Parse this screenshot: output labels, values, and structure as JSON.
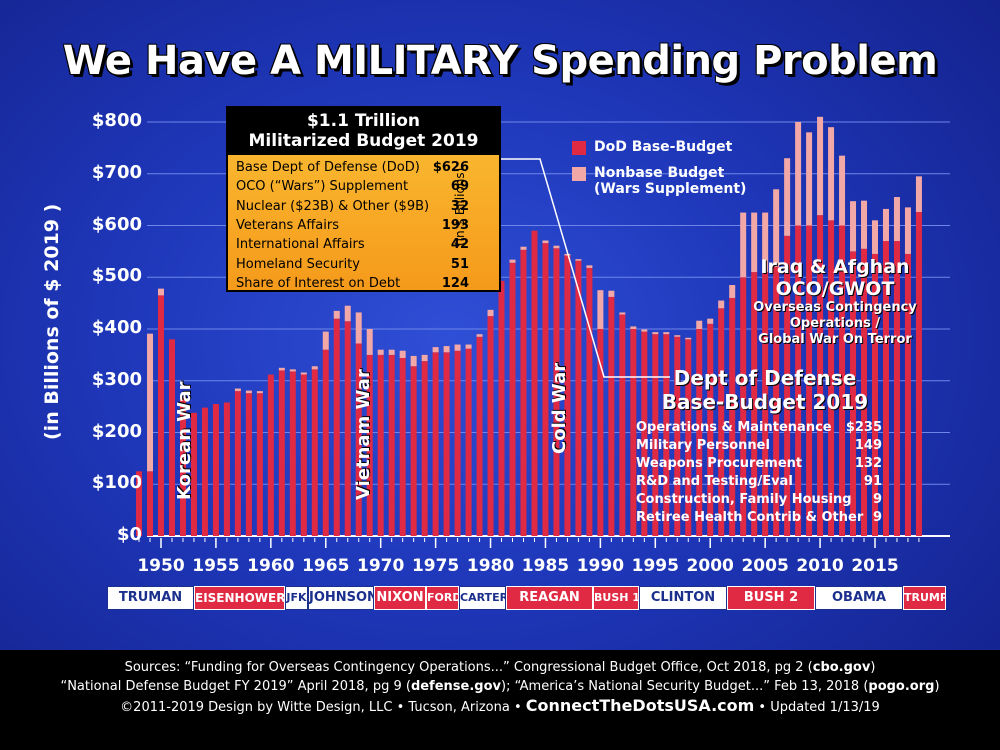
{
  "title": "We Have A MILITARY Spending Problem",
  "colors": {
    "base": "#e02a44",
    "nonbase": "#f2a8a6",
    "background": "#1e36b8",
    "box": "#f8ae2a"
  },
  "chart_data": {
    "type": "bar",
    "stacked": true,
    "ylabel": "(in Billions of $ 2019 )",
    "ylim": [
      0,
      800
    ],
    "yticks": [
      "$0",
      "$100",
      "$200",
      "$300",
      "$400",
      "$500",
      "$600",
      "$700",
      "$800"
    ],
    "xticks": [
      "1950",
      "1955",
      "1960",
      "1965",
      "1970",
      "1975",
      "1980",
      "1985",
      "1990",
      "1995",
      "2000",
      "2005",
      "2010",
      "2015"
    ],
    "grid": true,
    "legend_position": "top-right",
    "x": [
      1948,
      1949,
      1950,
      1951,
      1952,
      1953,
      1954,
      1955,
      1956,
      1957,
      1958,
      1959,
      1960,
      1961,
      1962,
      1963,
      1964,
      1965,
      1966,
      1967,
      1968,
      1969,
      1970,
      1971,
      1972,
      1973,
      1974,
      1975,
      1976,
      1977,
      1978,
      1979,
      1980,
      1981,
      1982,
      1983,
      1984,
      1985,
      1986,
      1987,
      1988,
      1989,
      1990,
      1991,
      1992,
      1993,
      1994,
      1995,
      1996,
      1997,
      1998,
      1999,
      2000,
      2001,
      2002,
      2003,
      2004,
      2005,
      2006,
      2007,
      2008,
      2009,
      2010,
      2011,
      2012,
      2013,
      2014,
      2015,
      2016,
      2017,
      2018,
      2019
    ],
    "series": [
      {
        "name": "DoD Base-Budget",
        "values": [
          125,
          125,
          465,
          380,
          268,
          238,
          248,
          255,
          258,
          280,
          276,
          276,
          312,
          320,
          318,
          312,
          322,
          360,
          420,
          415,
          372,
          350,
          350,
          350,
          344,
          328,
          338,
          355,
          355,
          358,
          362,
          385,
          425,
          493,
          528,
          553,
          590,
          566,
          556,
          542,
          532,
          518,
          400,
          462,
          428,
          400,
          395,
          390,
          390,
          385,
          380,
          400,
          410,
          440,
          460,
          500,
          510,
          510,
          520,
          580,
          600,
          600,
          620,
          610,
          600,
          550,
          555,
          545,
          570,
          570,
          545,
          626
        ]
      },
      {
        "name": "Nonbase Budget (Wars Supplement)",
        "values": [
          0,
          266,
          13,
          0,
          0,
          0,
          0,
          0,
          0,
          5,
          5,
          4,
          0,
          5,
          4,
          4,
          6,
          35,
          15,
          30,
          60,
          50,
          10,
          10,
          14,
          20,
          12,
          10,
          12,
          12,
          8,
          5,
          12,
          0,
          6,
          6,
          0,
          5,
          5,
          3,
          3,
          5,
          75,
          12,
          4,
          5,
          4,
          4,
          4,
          3,
          3,
          16,
          10,
          15,
          25,
          125,
          115,
          115,
          150,
          150,
          200,
          180,
          190,
          180,
          135,
          97,
          93,
          65,
          62,
          85,
          90,
          69
        ]
      }
    ]
  },
  "legend": {
    "base": "DoD Base-Budget",
    "nonbase_1": "Nonbase Budget",
    "nonbase_2": "(Wars Supplement)"
  },
  "war_labels": {
    "korea": "Korean War",
    "vietnam": "Vietnam War",
    "cold": "Cold War"
  },
  "infobox": {
    "title_1": "$1.1 Trillion",
    "title_2": "Militarized Budget 2019",
    "units": "(in $ Billions)",
    "rows": [
      {
        "label": "Base Dept of Defense (DoD)",
        "value": "$626"
      },
      {
        "label": "OCO (“Wars”) Supplement",
        "value": "69"
      },
      {
        "label": "Nuclear ($23B) & Other ($9B)",
        "value": "32"
      },
      {
        "label": "Veterans Affairs",
        "value": "193"
      },
      {
        "label": "International Affairs",
        "value": "42"
      },
      {
        "label": "Homeland Security",
        "value": "51"
      },
      {
        "label": "Share of Interest on Debt",
        "value": "124"
      }
    ]
  },
  "oco": {
    "line1": "Iraq & Afghan",
    "line2": "OCO/GWOT",
    "line3": "Overseas Contingency",
    "line4": "Operations /",
    "line5": "Global War On Terror"
  },
  "base_budget": {
    "title_1": "Dept of Defense",
    "title_2": "Base-Budget 2019",
    "rows": [
      {
        "label": "Operations & Maintenance",
        "value": "$235"
      },
      {
        "label": "Military Personnel",
        "value": "149"
      },
      {
        "label": "Weapons Procurement",
        "value": "132"
      },
      {
        "label": "R&D and Testing/Eval",
        "value": "91"
      },
      {
        "label": "Construction, Family Housing",
        "value": "9"
      },
      {
        "label": "Retiree Health Contrib & Other",
        "value": "9"
      }
    ]
  },
  "presidents": [
    {
      "name": "TRUMAN",
      "color": "#ffffff"
    },
    {
      "name": "EISENHOWER",
      "color": "#e02a44"
    },
    {
      "name": "JFK",
      "color": "#ffffff"
    },
    {
      "name": "JOHNSON",
      "color": "#ffffff"
    },
    {
      "name": "NIXON",
      "color": "#e02a44"
    },
    {
      "name": "FORD",
      "color": "#e02a44"
    },
    {
      "name": "CARTER",
      "color": "#ffffff"
    },
    {
      "name": "REAGAN",
      "color": "#e02a44"
    },
    {
      "name": "BUSH 1",
      "color": "#e02a44"
    },
    {
      "name": "CLINTON",
      "color": "#ffffff"
    },
    {
      "name": "BUSH 2",
      "color": "#e02a44"
    },
    {
      "name": "OBAMA",
      "color": "#ffffff"
    },
    {
      "name": "TRUMP",
      "color": "#e02a44"
    }
  ],
  "footer": {
    "line1_a": "Sources: “Funding for Overseas Contingency Operations...” Congressional Budget Office, Oct 2018, pg 2 (",
    "line1_b": "cbo.gov",
    "line1_c": ")",
    "line2_a": "“National Defense Budget FY 2019” April 2018, pg 9 (",
    "line2_b": "defense.gov",
    "line2_c": "); “America’s National Security Budget...” Feb 13, 2018 (",
    "line2_d": "pogo.org",
    "line2_e": ")",
    "line3_a": "©2011-2019 Design by Witte Design, LLC • Tucson, Arizona • ",
    "line3_b": "ConnectTheDotsUSA.com",
    "line3_c": " • Updated 1/13/19"
  }
}
